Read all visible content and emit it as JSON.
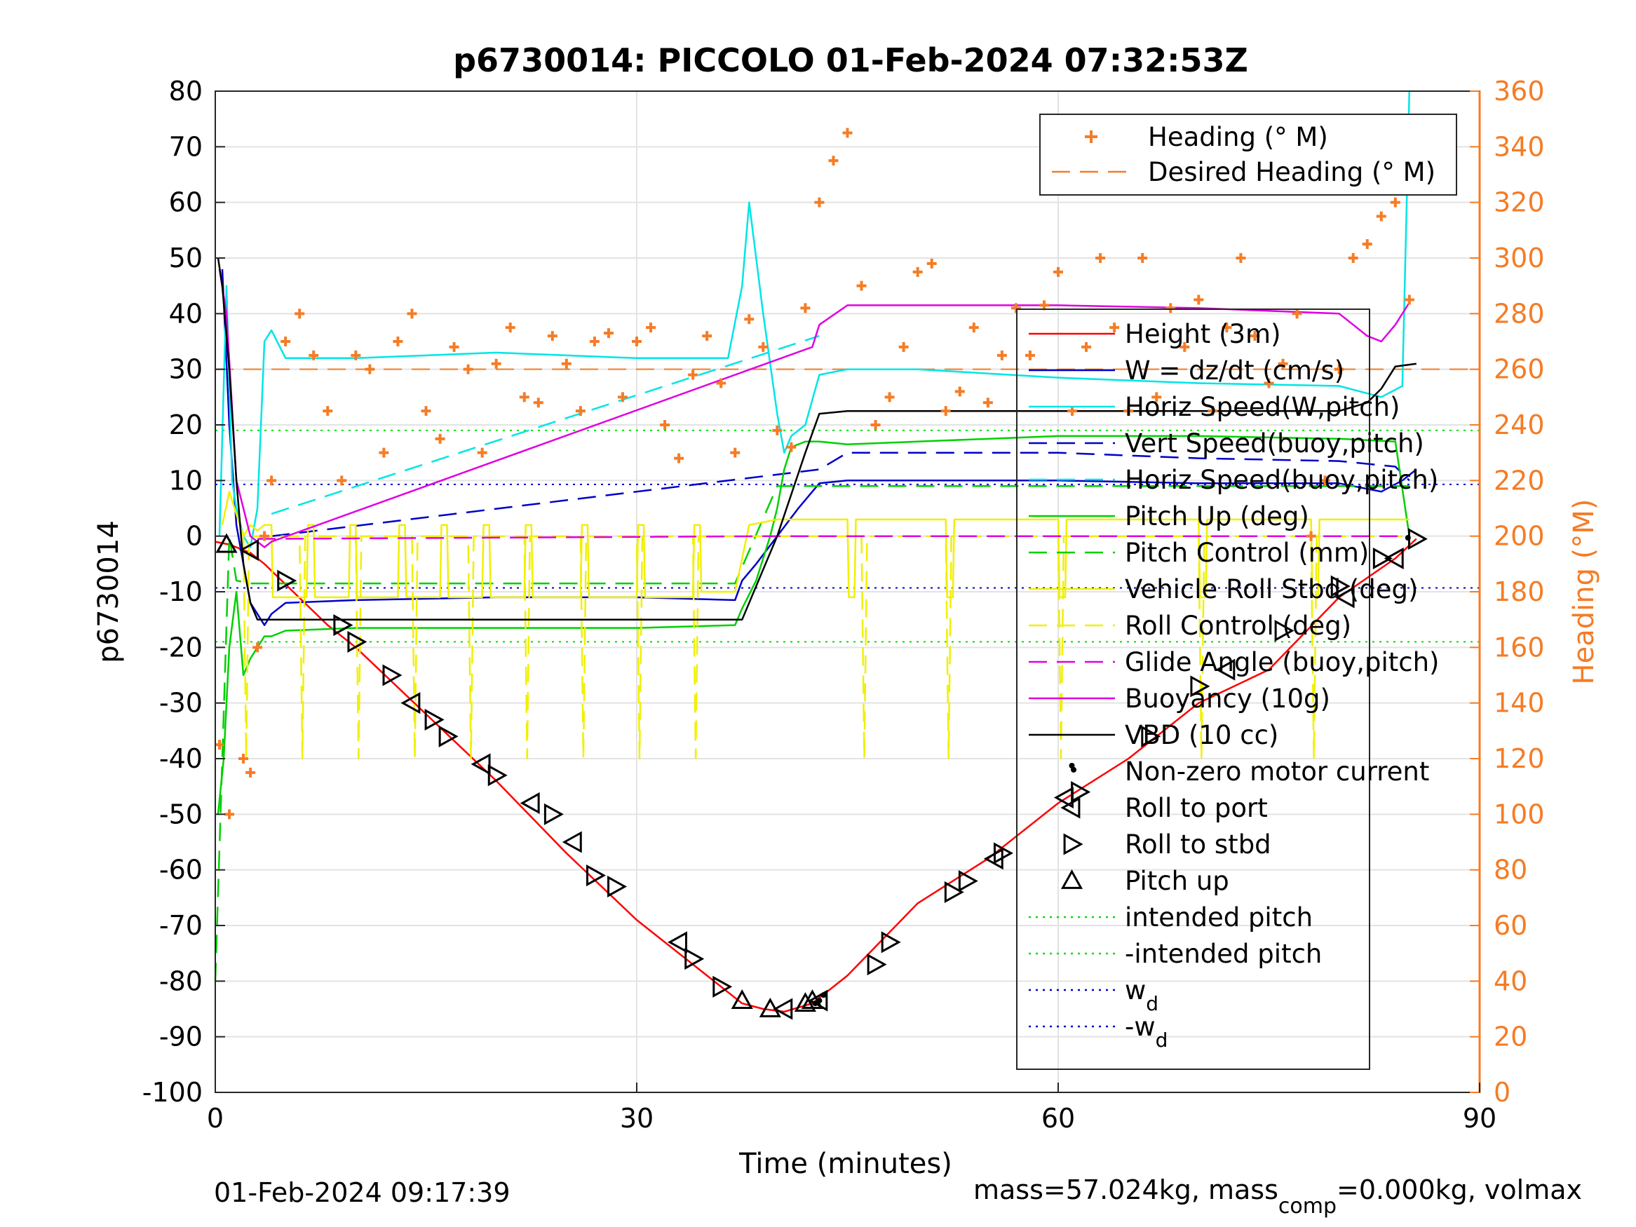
{
  "chart_data": {
    "type": "line",
    "title": "p6730014: PICCOLO 01-Feb-2024 07:32:53Z",
    "xlabel": "Time (minutes)",
    "ylabel": "p6730014",
    "y2label": "Heading (°M)",
    "xlim": [
      0,
      90
    ],
    "ylim": [
      -100,
      80
    ],
    "y2lim": [
      0,
      360
    ],
    "xticks": [
      0,
      30,
      60,
      90
    ],
    "yticks": [
      80,
      70,
      60,
      50,
      40,
      30,
      20,
      10,
      0,
      -10,
      -20,
      -30,
      -40,
      -50,
      -60,
      -70,
      -80,
      -90,
      -100
    ],
    "y2ticks": [
      360,
      340,
      320,
      300,
      280,
      260,
      240,
      220,
      200,
      180,
      160,
      140,
      120,
      100,
      80,
      60,
      40,
      20,
      0
    ],
    "grid": true,
    "footer_left": "01-Feb-2024 09:17:39",
    "footer_right_pre": "mass=57.024kg, mass",
    "footer_right_sub": "comp",
    "footer_right_post": "=0.000kg, volmax",
    "colors": {
      "heading": "#f57c25",
      "height": "#ff0000",
      "w": "#0000c8",
      "speed": "#00e5e5",
      "pitch": "#00d000",
      "roll": "#f0f000",
      "buoyancy": "#e000e0",
      "vbd": "#000000"
    },
    "legend_top": [
      {
        "label": "Heading (° M)",
        "style": "plus",
        "color": "#f57c25"
      },
      {
        "label": "Desired Heading (° M)",
        "style": "dashed",
        "color": "#f57c25"
      }
    ],
    "legend_main": [
      {
        "label": "Height (3m)",
        "style": "solid",
        "color": "#ff0000"
      },
      {
        "label": "W = dz/dt (cm/s)",
        "style": "solid",
        "color": "#0000c8"
      },
      {
        "label": "Horiz Speed(W,pitch)",
        "style": "solid",
        "color": "#00e5e5"
      },
      {
        "label": "Vert Speed(buoy,pitch)",
        "style": "dashed",
        "color": "#0000c8"
      },
      {
        "label": "Horiz Speed(buoy,pitch)",
        "style": "dashed",
        "color": "#00e5e5"
      },
      {
        "label": "Pitch Up (deg)",
        "style": "solid",
        "color": "#00d000"
      },
      {
        "label": "Pitch Control (mm)",
        "style": "dashed",
        "color": "#00d000"
      },
      {
        "label": "Vehicle Roll Stbd (deg)",
        "style": "solid",
        "color": "#f0f000"
      },
      {
        "label": "Roll Control (deg)",
        "style": "dashed",
        "color": "#f0f000"
      },
      {
        "label": "Glide Angle (buoy,pitch)",
        "style": "dashed",
        "color": "#e000e0"
      },
      {
        "label": "Buoyancy (10g)",
        "style": "solid",
        "color": "#e000e0"
      },
      {
        "label": "VBD (10 cc)",
        "style": "solid",
        "color": "#000000"
      },
      {
        "label": "Non-zero motor current",
        "style": "dot",
        "color": "#000000"
      },
      {
        "label": "Roll to port",
        "style": "tri-left",
        "color": "#000000"
      },
      {
        "label": "Roll to stbd",
        "style": "tri-right",
        "color": "#000000"
      },
      {
        "label": "Pitch up",
        "style": "tri-up",
        "color": "#000000"
      },
      {
        "label": "intended pitch",
        "style": "dotted",
        "color": "#00e000"
      },
      {
        "label": "-intended pitch",
        "style": "dotted",
        "color": "#00e000"
      },
      {
        "label": "w",
        "sub": "d",
        "style": "dotted",
        "color": "#0000c8"
      },
      {
        "label": "-w",
        "sub": "d",
        "style": "dotted",
        "color": "#0000c8"
      }
    ],
    "reference_lines": {
      "intended_pitch": 19,
      "neg_intended_pitch": -19,
      "w_d": 9.3,
      "neg_w_d": -9.3,
      "desired_heading": 260
    },
    "series": [
      {
        "name": "Height (3m)",
        "key": "height",
        "style": "solid",
        "color": "#ff0000",
        "x": [
          0,
          1,
          2,
          2.5,
          3.5,
          8,
          10,
          15,
          20,
          25,
          30,
          35,
          37.5,
          39,
          40.5,
          42.5,
          45,
          50,
          55,
          60,
          65,
          70,
          75,
          80,
          84,
          85.5
        ],
        "y": [
          -1,
          -1.5,
          -2.5,
          -3,
          -5,
          -16,
          -20,
          -32,
          -44,
          -57,
          -69,
          -79,
          -84,
          -85,
          -85.5,
          -84,
          -79,
          -66,
          -58,
          -48,
          -40,
          -30,
          -24,
          -11,
          -4,
          -0.5
        ]
      },
      {
        "name": "W = dz/dt (cm/s)",
        "key": "w",
        "style": "solid",
        "color": "#0000c8",
        "x": [
          0.5,
          1,
          1.5,
          2,
          2.5,
          3,
          3.5,
          4,
          5,
          10,
          20,
          30,
          37,
          37.5,
          38.5,
          40,
          41.5,
          42.5,
          43,
          45,
          50,
          60,
          70,
          80,
          81,
          83,
          84.5,
          85.5
        ],
        "y": [
          48,
          20,
          2,
          -5,
          -12,
          -14,
          -16,
          -14,
          -12,
          -11.5,
          -11,
          -11,
          -11.5,
          -8,
          -5,
          0,
          5,
          8,
          9.5,
          10,
          10,
          10,
          9.5,
          9.5,
          9,
          8,
          10,
          12
        ]
      },
      {
        "name": "Horiz Speed(W,pitch)",
        "key": "speed",
        "style": "solid",
        "color": "#00e5e5",
        "x": [
          0.3,
          0.8,
          1.2,
          1.5,
          2,
          2.5,
          3,
          3.5,
          4,
          5,
          10,
          20,
          30,
          36.5,
          37.5,
          38,
          39,
          40,
          40.5,
          41,
          42,
          43,
          45,
          50,
          60,
          70,
          80,
          83,
          84.5,
          85
        ],
        "y": [
          0,
          45,
          10,
          5,
          0,
          -2,
          5,
          35,
          37,
          32,
          32,
          33,
          32,
          32,
          45,
          60,
          40,
          22,
          15,
          18,
          20,
          29,
          30,
          30,
          28.5,
          27.5,
          27,
          25,
          27,
          80
        ]
      },
      {
        "name": "Vert Speed(buoy,pitch)",
        "key": "vertspeed",
        "style": "dashed",
        "color": "#0000c8",
        "x": [
          4,
          43,
          45,
          60,
          70,
          80,
          84,
          85
        ],
        "y": [
          0,
          12,
          15,
          15,
          14,
          13.5,
          12.5,
          10
        ]
      },
      {
        "name": "Horiz Speed(buoy,pitch)",
        "key": "horizspeed_buoy",
        "style": "dashed",
        "color": "#00e5e5",
        "x": [
          4,
          43
        ],
        "y": [
          4,
          36
        ]
      },
      {
        "name": "Pitch Up (deg)",
        "key": "pitch",
        "style": "solid",
        "color": "#00d000",
        "x": [
          0.2,
          0.6,
          1,
          1.5,
          2,
          2.5,
          3,
          3.5,
          4,
          5,
          10,
          20,
          30,
          37,
          37.5,
          38.5,
          39.5,
          40,
          40.5,
          41,
          42,
          43,
          45,
          50,
          60,
          70,
          80,
          84,
          85
        ],
        "y": [
          -50,
          -40,
          -20,
          -10,
          -25,
          -22,
          -20,
          -18,
          -18,
          -17,
          -16.5,
          -16.5,
          -16.5,
          -16,
          -13,
          -8,
          0,
          5,
          12,
          16,
          17,
          17,
          16.5,
          17,
          18,
          18,
          17.5,
          17,
          0
        ]
      },
      {
        "name": "Pitch Control (mm)",
        "key": "pitchctl",
        "style": "dashed",
        "color": "#00d000",
        "x": [
          0,
          1,
          1.5,
          2.5,
          37,
          40,
          42.5,
          85
        ],
        "y": [
          -80,
          0,
          -8,
          -8.5,
          -8.5,
          9,
          9,
          9
        ]
      },
      {
        "name": "Vehicle Roll Stbd (deg)",
        "key": "roll",
        "style": "solid",
        "color": "#f0f000",
        "x": [
          0.5,
          1,
          2,
          2.5,
          3,
          3.5,
          4,
          4.1,
          6.5,
          6.6,
          7,
          7.1,
          9.5,
          9.6,
          10,
          10.1,
          13,
          13.1,
          13.5,
          13.6,
          16,
          16.1,
          16.5,
          16.6,
          19,
          19.1,
          19.5,
          19.6,
          22,
          22.1,
          22.5,
          22.6,
          26,
          26.1,
          26.5,
          26.6,
          30,
          30.1,
          30.5,
          30.6,
          34,
          34.1,
          34.5,
          34.6,
          37,
          38,
          40,
          41,
          42,
          45,
          45.1,
          45.5,
          45.6,
          52,
          52.1,
          52.5,
          52.6,
          60,
          60.1,
          60.5,
          60.6,
          70,
          70.1,
          70.5,
          70.6,
          78,
          78.1,
          78.5,
          78.6,
          85
        ],
        "y": [
          2,
          8,
          0,
          2,
          1,
          2,
          2,
          -11,
          -11,
          2,
          2,
          -11,
          -11,
          2,
          2,
          -11,
          -11,
          2,
          2,
          -11,
          -11,
          2,
          2,
          -11,
          -11,
          2,
          2,
          -11,
          -11,
          2,
          2,
          -11,
          -11,
          2,
          2,
          -11,
          -11,
          2,
          2,
          -11,
          -11,
          2,
          2,
          -10,
          -10,
          2,
          3,
          3,
          3,
          3,
          -11,
          -11,
          3,
          3,
          -11,
          -11,
          3,
          3,
          -11,
          -11,
          3,
          3,
          -11,
          -11,
          3,
          3,
          -11,
          -11,
          3,
          3
        ]
      },
      {
        "name": "Roll Control (deg)",
        "key": "rollctl",
        "style": "dashed",
        "color": "#f0f000",
        "x": [
          2,
          2.2,
          2.4,
          6,
          6.2,
          6.4,
          10,
          10.2,
          10.4,
          14,
          14.2,
          14.4,
          18,
          18.2,
          18.4,
          22,
          22.2,
          22.4,
          26,
          26.2,
          26.4,
          30,
          30.2,
          30.4,
          34,
          34.2,
          34.4,
          46,
          46.2,
          46.4,
          52,
          52.2,
          52.4,
          60,
          60.2,
          60.4,
          70,
          70.2,
          70.4,
          78,
          78.2,
          78.4,
          85
        ],
        "y": [
          0,
          -40,
          0,
          0,
          -40,
          0,
          0,
          -40,
          0,
          0,
          -40,
          0,
          0,
          -40,
          0,
          0,
          -40,
          0,
          0,
          -40,
          0,
          0,
          -40,
          0,
          0,
          -40,
          0,
          0,
          -40,
          0,
          0,
          -40,
          0,
          0,
          -40,
          0,
          0,
          -40,
          0,
          0,
          -40,
          0,
          0
        ]
      },
      {
        "name": "Glide Angle (buoy,pitch)",
        "key": "glide",
        "style": "dashed",
        "color": "#e000e0",
        "x": [
          3,
          40,
          85
        ],
        "y": [
          -0.5,
          0,
          0
        ]
      },
      {
        "name": "Buoyancy (10g)",
        "key": "buoyancy",
        "style": "solid",
        "color": "#e000e0",
        "x": [
          0.3,
          0.8,
          1.5,
          2.5,
          3.5,
          4,
          42.5,
          43,
          45,
          50,
          60,
          70,
          80,
          81,
          82,
          83,
          84,
          85
        ],
        "y": [
          48,
          40,
          10,
          0,
          -2,
          -1,
          34,
          38,
          41.5,
          41.5,
          41.5,
          41,
          40,
          38,
          36,
          35,
          38,
          42
        ]
      },
      {
        "name": "VBD (10 cc)",
        "key": "vbd",
        "style": "solid",
        "color": "#000000",
        "x": [
          0.2,
          0.5,
          1,
          1.5,
          2,
          2.5,
          3,
          4,
          37.5,
          40,
          42,
          43,
          45,
          50,
          60,
          70,
          80,
          82,
          83,
          84,
          85.5
        ],
        "y": [
          50,
          45,
          30,
          10,
          -5,
          -12,
          -15,
          -15,
          -15,
          0,
          15,
          22,
          22.5,
          22.5,
          22.5,
          22.5,
          22.5,
          24,
          26.5,
          30.5,
          31
        ]
      }
    ],
    "heading": {
      "name": "Heading (° M)",
      "x": [
        0.3,
        1,
        2,
        2.5,
        3,
        3.5,
        4,
        5,
        6,
        7,
        8,
        9,
        10,
        11,
        12,
        13,
        14,
        15,
        16,
        17,
        18,
        19,
        20,
        21,
        22,
        23,
        24,
        25,
        26,
        27,
        28,
        29,
        30,
        31,
        32,
        33,
        34,
        35,
        36,
        37,
        38,
        39,
        40,
        41,
        42,
        43,
        44,
        45,
        46,
        47,
        48,
        49,
        50,
        51,
        52,
        53,
        54,
        55,
        56,
        57,
        58,
        59,
        60,
        61,
        62,
        63,
        64,
        65,
        66,
        67,
        68,
        69,
        70,
        71,
        72,
        73,
        74,
        75,
        76,
        77,
        78,
        79,
        80,
        81,
        82,
        83,
        84,
        85
      ],
      "y": [
        125,
        100,
        120,
        115,
        160,
        200,
        220,
        270,
        280,
        265,
        245,
        220,
        265,
        260,
        230,
        270,
        280,
        245,
        235,
        268,
        260,
        230,
        262,
        275,
        250,
        248,
        272,
        262,
        245,
        270,
        273,
        250,
        270,
        275,
        240,
        228,
        258,
        272,
        255,
        230,
        278,
        268,
        238,
        232,
        282,
        320,
        335,
        345,
        290,
        240,
        250,
        268,
        295,
        298,
        245,
        252,
        275,
        248,
        265,
        282,
        265,
        283,
        295,
        245,
        268,
        300,
        275,
        245,
        300,
        250,
        282,
        268,
        285,
        245,
        275,
        300,
        272,
        255,
        262,
        280,
        200,
        220,
        260,
        300,
        305,
        315,
        320,
        285
      ]
    },
    "markers": {
      "roll_to_port": {
        "x": [
          2.5,
          14,
          19,
          22.5,
          25.5,
          33,
          40.5,
          43,
          55.5,
          60.5,
          72,
          80.5,
          84
        ],
        "y": [
          -2.5,
          -30,
          -41,
          -48,
          -55,
          -73,
          -85,
          -83.5,
          -58,
          -47,
          -24,
          -11,
          -4
        ]
      },
      "roll_to_stbd": {
        "x": [
          5,
          9,
          10,
          12.5,
          15.5,
          16.5,
          20,
          24,
          27,
          28.5,
          34,
          36,
          47,
          48,
          52.5,
          53.5,
          56,
          61.5,
          66.5,
          70,
          76,
          80,
          83,
          85.5
        ],
        "y": [
          -8,
          -16,
          -19,
          -25,
          -33,
          -36,
          -43,
          -50,
          -61,
          -63,
          -76,
          -81,
          -77,
          -73,
          -64,
          -62,
          -57,
          -46,
          -36,
          -27,
          -17,
          -9,
          -4,
          -0.5
        ]
      },
      "pitch_up": {
        "x": [
          0.8,
          37.5,
          39.5,
          42,
          42.5
        ],
        "y": [
          -1.5,
          -83.5,
          -85,
          -84,
          -83.5
        ]
      },
      "motor_current": {
        "x": [
          42.7,
          43,
          43.3,
          61.1,
          84.9
        ],
        "y": [
          -84,
          -83.5,
          -82.5,
          -42,
          -0.3
        ]
      }
    }
  }
}
